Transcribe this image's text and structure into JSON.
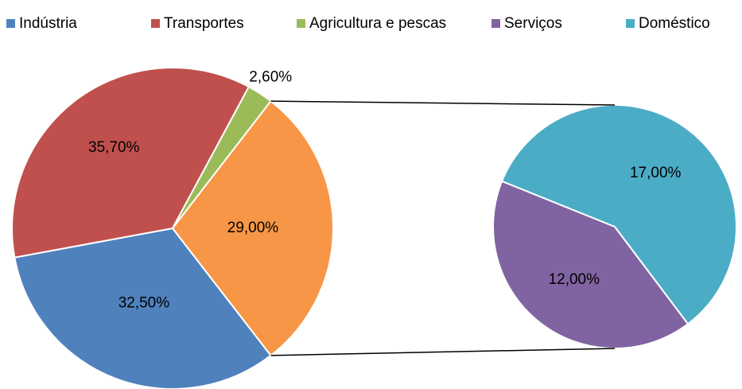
{
  "chart_data": {
    "type": "pie",
    "legend": "top",
    "primary": {
      "categories": [
        "Indústria",
        "Transportes",
        "Agricultura e pescas"
      ],
      "values": [
        32.5,
        35.7,
        2.6
      ],
      "value_labels": [
        "32,50%",
        "35,70%",
        "2,60%"
      ],
      "colors": [
        "#4f81bd",
        "#c0504d",
        "#9bbb59"
      ]
    },
    "other": {
      "value": 29,
      "value_label": "29,00%",
      "color": "#f79646"
    },
    "secondary": {
      "categories": [
        "Serviços",
        "Doméstico"
      ],
      "values": [
        12,
        17
      ],
      "value_labels": [
        "12,00%",
        "17,00%"
      ],
      "colors": [
        "#8064a2",
        "#4bacc6"
      ]
    }
  }
}
